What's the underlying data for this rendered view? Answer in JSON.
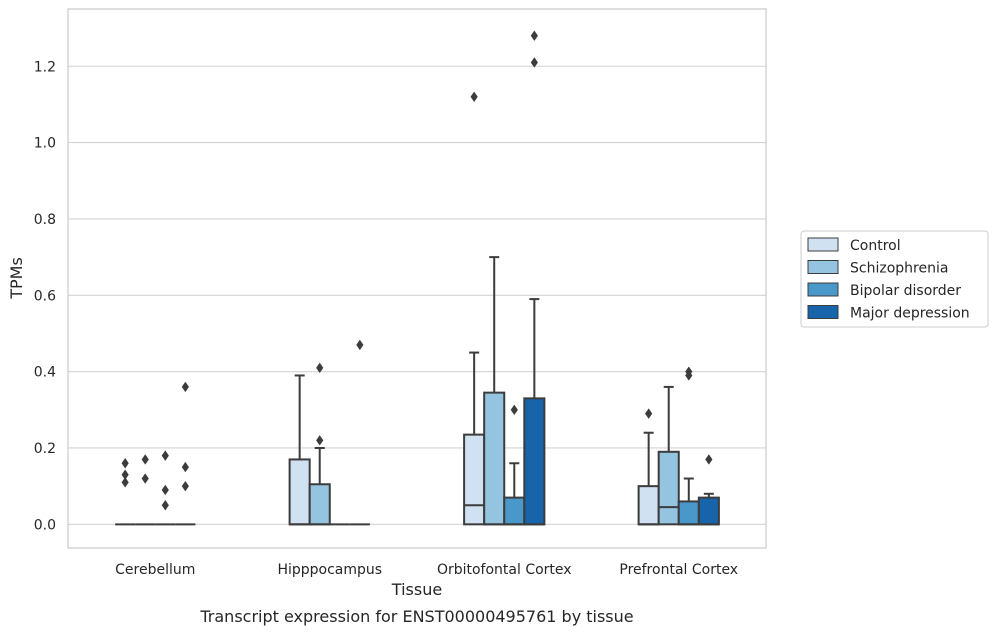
{
  "chart_data": {
    "type": "box",
    "caption": "Transcript expression for ENST00000495761 by tissue",
    "xlabel": "Tissue",
    "ylabel": "TPMs",
    "ylim": [
      -0.062,
      1.35
    ],
    "y_ticks": [
      "0.0",
      "0.2",
      "0.4",
      "0.6",
      "0.8",
      "1.0",
      "1.2"
    ],
    "y_tick_values": [
      0.0,
      0.2,
      0.4,
      0.6,
      0.8,
      1.0,
      1.2
    ],
    "grid": "horizontal",
    "legend_placement": "right",
    "categories": [
      "Cerebellum",
      "Hipppocampus",
      "Orbitofontal Cortex",
      "Prefrontal Cortex"
    ],
    "series": [
      {
        "name": "Control",
        "color": "#d0e1f2",
        "boxes": [
          {
            "q1": 0,
            "median": 0,
            "q3": 0,
            "whisker_low": 0,
            "whisker_high": 0,
            "outliers": [
              0.11,
              0.13,
              0.16
            ]
          },
          {
            "q1": 0,
            "median": 0,
            "q3": 0.17,
            "whisker_low": 0,
            "whisker_high": 0.39,
            "outliers": []
          },
          {
            "q1": 0,
            "median": 0.05,
            "q3": 0.235,
            "whisker_low": 0,
            "whisker_high": 0.45,
            "outliers": [
              1.12
            ]
          },
          {
            "q1": 0,
            "median": 0,
            "q3": 0.1,
            "whisker_low": 0,
            "whisker_high": 0.24,
            "outliers": [
              0.29
            ]
          }
        ]
      },
      {
        "name": "Schizophrenia",
        "color": "#94c4df",
        "boxes": [
          {
            "q1": 0,
            "median": 0,
            "q3": 0,
            "whisker_low": 0,
            "whisker_high": 0,
            "outliers": [
              0.12,
              0.17
            ]
          },
          {
            "q1": 0,
            "median": 0,
            "q3": 0.105,
            "whisker_low": 0,
            "whisker_high": 0.2,
            "outliers": [
              0.22,
              0.41
            ]
          },
          {
            "q1": 0,
            "median": 0,
            "q3": 0.345,
            "whisker_low": 0,
            "whisker_high": 0.7,
            "outliers": []
          },
          {
            "q1": 0,
            "median": 0.045,
            "q3": 0.19,
            "whisker_low": 0,
            "whisker_high": 0.36,
            "outliers": []
          }
        ]
      },
      {
        "name": "Bipolar disorder",
        "color": "#4a98c9",
        "boxes": [
          {
            "q1": 0,
            "median": 0,
            "q3": 0,
            "whisker_low": 0,
            "whisker_high": 0,
            "outliers": [
              0.05,
              0.09,
              0.18
            ]
          },
          {
            "q1": 0,
            "median": 0,
            "q3": 0,
            "whisker_low": 0,
            "whisker_high": 0,
            "outliers": []
          },
          {
            "q1": 0,
            "median": 0,
            "q3": 0.07,
            "whisker_low": 0,
            "whisker_high": 0.16,
            "outliers": [
              0.3
            ]
          },
          {
            "q1": 0,
            "median": 0,
            "q3": 0.06,
            "whisker_low": 0,
            "whisker_high": 0.12,
            "outliers": [
              0.39,
              0.4
            ]
          }
        ]
      },
      {
        "name": "Major depression",
        "color": "#1764ab",
        "boxes": [
          {
            "q1": 0,
            "median": 0,
            "q3": 0,
            "whisker_low": 0,
            "whisker_high": 0,
            "outliers": [
              0.1,
              0.15,
              0.36
            ]
          },
          {
            "q1": 0,
            "median": 0,
            "q3": 0,
            "whisker_low": 0,
            "whisker_high": 0,
            "outliers": [
              0.47
            ]
          },
          {
            "q1": 0,
            "median": 0,
            "q3": 0.33,
            "whisker_low": 0,
            "whisker_high": 0.59,
            "outliers": [
              1.21,
              1.28
            ]
          },
          {
            "q1": 0,
            "median": 0,
            "q3": 0.07,
            "whisker_low": 0,
            "whisker_high": 0.08,
            "outliers": [
              0.17
            ]
          }
        ]
      }
    ]
  }
}
